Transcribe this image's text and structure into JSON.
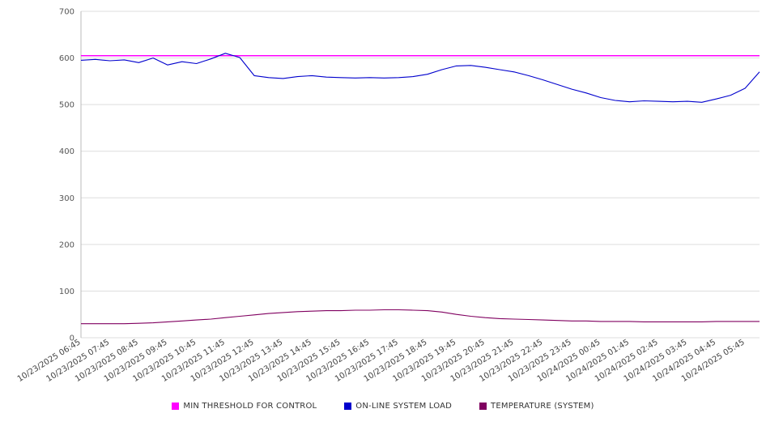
{
  "chart_data": {
    "type": "line",
    "title": "",
    "xlabel": "",
    "ylabel": "",
    "ylim": [
      0,
      700
    ],
    "yticks": [
      0,
      100,
      200,
      300,
      400,
      500,
      600,
      700
    ],
    "grid": "horizontal",
    "legend_position": "bottom",
    "x_hours_span": 23.5,
    "x_labels": [
      "10/23/2025 06:45",
      "10/23/2025 07:45",
      "10/23/2025 08:45",
      "10/23/2025 09:45",
      "10/23/2025 10:45",
      "10/23/2025 11:45",
      "10/23/2025 12:45",
      "10/23/2025 13:45",
      "10/23/2025 14:45",
      "10/23/2025 15:45",
      "10/23/2025 16:45",
      "10/23/2025 17:45",
      "10/23/2025 18:45",
      "10/23/2025 19:45",
      "10/23/2025 20:45",
      "10/23/2025 21:45",
      "10/23/2025 22:45",
      "10/23/2025 23:45",
      "10/24/2025 00:45",
      "10/24/2025 01:45",
      "10/24/2025 02:45",
      "10/24/2025 03:45",
      "10/24/2025 04:45",
      "10/24/2025 05:45"
    ],
    "series": [
      {
        "name": "MIN THRESHOLD FOR CONTROL",
        "color": "#ff00ff",
        "type": "hline",
        "value": 605
      },
      {
        "name": "ON-LINE SYSTEM LOAD",
        "color": "#0000cd",
        "type": "line",
        "values": [
          595,
          597,
          594,
          596,
          590,
          600,
          585,
          592,
          588,
          598,
          610,
          601,
          562,
          558,
          556,
          560,
          562,
          559,
          558,
          557,
          558,
          557,
          558,
          560,
          565,
          575,
          583,
          584,
          580,
          575,
          570,
          562,
          553,
          543,
          533,
          525,
          515,
          509,
          506,
          508,
          507,
          506,
          507,
          505,
          512,
          520,
          535,
          570
        ]
      },
      {
        "name": "TEMPERATURE (SYSTEM)",
        "color": "#800060",
        "type": "line",
        "values": [
          30,
          30,
          30,
          30,
          31,
          32,
          34,
          36,
          38,
          40,
          43,
          46,
          49,
          52,
          54,
          56,
          57,
          58,
          58,
          59,
          59,
          60,
          60,
          59,
          58,
          55,
          50,
          46,
          43,
          41,
          40,
          39,
          38,
          37,
          36,
          36,
          35,
          35,
          35,
          34,
          34,
          34,
          34,
          34,
          35,
          35,
          35,
          35
        ]
      }
    ]
  }
}
